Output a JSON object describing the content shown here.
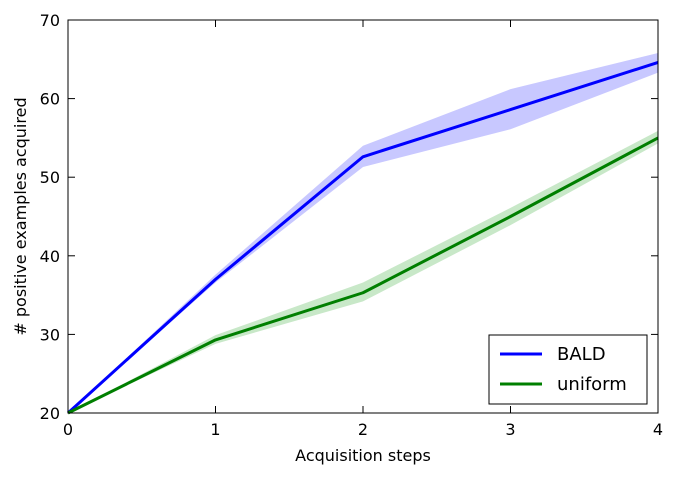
{
  "chart_data": {
    "type": "line",
    "xlabel": "Acquisition steps",
    "ylabel": "# positive examples acquired",
    "xlim": [
      0,
      4
    ],
    "ylim": [
      20,
      70
    ],
    "xticks": [
      0,
      1,
      2,
      3,
      4
    ],
    "yticks": [
      20,
      30,
      40,
      50,
      60,
      70
    ],
    "grid": false,
    "legend_position": "lower-right",
    "x": [
      0,
      1,
      2,
      3,
      4
    ],
    "series": [
      {
        "name": "BALD",
        "color": "#0000ff",
        "band_color": "#c8c8ff",
        "values": [
          20,
          37,
          52.6,
          58.6,
          64.6
        ],
        "lower": [
          20,
          36.6,
          51.3,
          56.1,
          63.3
        ],
        "upper": [
          20,
          37.6,
          54,
          61.2,
          65.8
        ]
      },
      {
        "name": "uniform",
        "color": "#007f00",
        "band_color": "#c8e8c8",
        "values": [
          20,
          29.3,
          35.3,
          45,
          55
        ],
        "lower": [
          20,
          28.8,
          34.2,
          43.9,
          54.3
        ],
        "upper": [
          20,
          29.9,
          36.6,
          46.1,
          55.9
        ]
      }
    ]
  }
}
